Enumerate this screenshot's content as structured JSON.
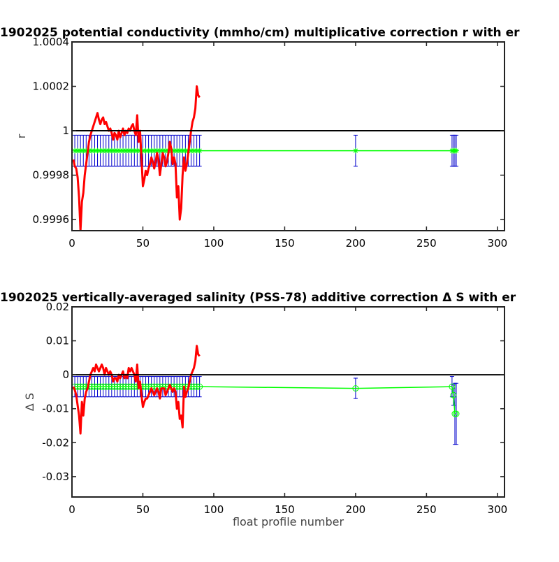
{
  "chart_data": [
    {
      "type": "line",
      "title": "1902025 potential conductivity (mmho/cm) multiplicative correction r with er",
      "xlabel": "",
      "ylabel": "r",
      "xlim": [
        0,
        305
      ],
      "ylim": [
        0.99955,
        1.0004
      ],
      "xticks": [
        0,
        50,
        100,
        150,
        200,
        250,
        300
      ],
      "xtick_labels": [
        "0",
        "50",
        "100",
        "150",
        "200",
        "250",
        "300"
      ],
      "yticks": [
        0.9996,
        0.9998,
        1.0,
        1.0002,
        1.0004
      ],
      "ytick_labels": [
        "0.9996",
        "0.9998",
        "1",
        "1.0002",
        "1.0004"
      ],
      "reference_line": 1.0,
      "series": [
        {
          "role": "correction",
          "color": "#ff0000",
          "x": [
            1,
            2,
            3,
            4,
            5,
            6,
            7,
            8,
            9,
            10,
            11,
            12,
            13,
            14,
            15,
            16,
            17,
            18,
            19,
            20,
            21,
            22,
            23,
            24,
            25,
            26,
            27,
            28,
            29,
            30,
            31,
            32,
            33,
            34,
            35,
            36,
            37,
            38,
            39,
            40,
            41,
            42,
            43,
            44,
            45,
            46,
            47,
            48,
            49,
            50,
            51,
            52,
            53,
            54,
            55,
            56,
            57,
            58,
            59,
            60,
            61,
            62,
            63,
            64,
            65,
            66,
            67,
            68,
            69,
            70,
            71,
            72,
            73,
            74,
            75,
            76,
            77,
            78,
            79,
            80,
            81,
            82,
            83,
            84,
            85,
            86,
            87,
            88,
            89,
            90
          ],
          "values": [
            0.99987,
            0.99984,
            0.99983,
            0.99979,
            0.9997,
            0.99955,
            0.99968,
            0.99972,
            0.9998,
            0.99985,
            0.9999,
            0.99995,
            0.99998,
            1.0,
            1.00002,
            1.00004,
            1.00006,
            1.00008,
            1.00005,
            1.00003,
            1.00005,
            1.00006,
            1.00003,
            1.00004,
            1.00002,
            1.0,
            1.00001,
            0.99999,
            0.99996,
            0.99999,
            0.99998,
            0.99996,
            1.0,
            0.99997,
            0.99999,
            1.00001,
            0.99998,
            1.0,
            0.99999,
            1.00001,
            1.0,
            1.00002,
            1.00003,
            1.0,
            0.99998,
            1.00007,
            0.99995,
            1.0,
            0.99988,
            0.99975,
            0.99978,
            0.99982,
            0.9998,
            0.99983,
            0.99985,
            0.99988,
            0.99986,
            0.99983,
            0.99986,
            0.9999,
            0.99987,
            0.9998,
            0.99985,
            0.9999,
            0.99988,
            0.99984,
            0.99986,
            0.9999,
            0.99995,
            0.99992,
            0.99985,
            0.99988,
            0.99985,
            0.9997,
            0.99975,
            0.9996,
            0.99965,
            0.9998,
            0.99988,
            0.99982,
            0.99985,
            0.9999,
            0.99995,
            1.0,
            1.00004,
            1.00006,
            1.0001,
            1.0002,
            1.00016,
            1.00015
          ]
        },
        {
          "role": "fit",
          "color": "#00ff00",
          "errorbar_color": "#0000cc",
          "marker": "*",
          "x": [
            2,
            4,
            6,
            8,
            10,
            12,
            14,
            16,
            18,
            20,
            22,
            24,
            26,
            28,
            30,
            32,
            34,
            36,
            38,
            40,
            42,
            44,
            46,
            48,
            50,
            52,
            54,
            56,
            58,
            60,
            62,
            64,
            66,
            68,
            70,
            72,
            74,
            76,
            78,
            80,
            82,
            84,
            86,
            88,
            90,
            200,
            268,
            269,
            270,
            271
          ],
          "values": [
            0.99991,
            0.99991,
            0.99991,
            0.99991,
            0.99991,
            0.99991,
            0.99991,
            0.99991,
            0.99991,
            0.99991,
            0.99991,
            0.99991,
            0.99991,
            0.99991,
            0.99991,
            0.99991,
            0.99991,
            0.99991,
            0.99991,
            0.99991,
            0.99991,
            0.99991,
            0.99991,
            0.99991,
            0.99991,
            0.99991,
            0.99991,
            0.99991,
            0.99991,
            0.99991,
            0.99991,
            0.99991,
            0.99991,
            0.99991,
            0.99991,
            0.99991,
            0.99991,
            0.99991,
            0.99991,
            0.99991,
            0.99991,
            0.99991,
            0.99991,
            0.99991,
            0.99991,
            0.99991,
            0.99991,
            0.99991,
            0.99991,
            0.99991
          ],
          "error": [
            7e-05,
            7e-05,
            7e-05,
            7e-05,
            7e-05,
            7e-05,
            7e-05,
            7e-05,
            7e-05,
            7e-05,
            7e-05,
            7e-05,
            7e-05,
            7e-05,
            7e-05,
            7e-05,
            7e-05,
            7e-05,
            7e-05,
            7e-05,
            7e-05,
            7e-05,
            7e-05,
            7e-05,
            7e-05,
            7e-05,
            7e-05,
            7e-05,
            7e-05,
            7e-05,
            7e-05,
            7e-05,
            7e-05,
            7e-05,
            7e-05,
            7e-05,
            7e-05,
            7e-05,
            7e-05,
            7e-05,
            7e-05,
            7e-05,
            7e-05,
            7e-05,
            7e-05,
            7e-05,
            7e-05,
            7e-05,
            7e-05,
            7e-05
          ]
        }
      ],
      "grid": false
    },
    {
      "type": "line",
      "title": "1902025 vertically-averaged salinity (PSS-78) additive correction Δ S with er",
      "xlabel": "float profile number",
      "ylabel": "Δ S",
      "xlim": [
        0,
        305
      ],
      "ylim": [
        -0.036,
        0.02
      ],
      "xticks": [
        0,
        50,
        100,
        150,
        200,
        250,
        300
      ],
      "xtick_labels": [
        "0",
        "50",
        "100",
        "150",
        "200",
        "250",
        "300"
      ],
      "yticks": [
        -0.03,
        -0.02,
        -0.01,
        0,
        0.01,
        0.02
      ],
      "ytick_labels": [
        "-0.03",
        "-0.02",
        "-0.01",
        "0",
        "0.01",
        "0.02"
      ],
      "reference_line": 0,
      "series": [
        {
          "role": "correction",
          "color": "#ff0000",
          "x": [
            1,
            2,
            3,
            4,
            5,
            6,
            7,
            8,
            9,
            10,
            11,
            12,
            13,
            14,
            15,
            16,
            17,
            18,
            19,
            20,
            21,
            22,
            23,
            24,
            25,
            26,
            27,
            28,
            29,
            30,
            31,
            32,
            33,
            34,
            35,
            36,
            37,
            38,
            39,
            40,
            41,
            42,
            43,
            44,
            45,
            46,
            47,
            48,
            49,
            50,
            51,
            52,
            53,
            54,
            55,
            56,
            57,
            58,
            59,
            60,
            61,
            62,
            63,
            64,
            65,
            66,
            67,
            68,
            69,
            70,
            71,
            72,
            73,
            74,
            75,
            76,
            77,
            78,
            79,
            80,
            81,
            82,
            83,
            84,
            85,
            86,
            87,
            88,
            89,
            90
          ],
          "values": [
            -0.0035,
            -0.0045,
            -0.006,
            -0.009,
            -0.012,
            -0.0173,
            -0.008,
            -0.012,
            -0.007,
            -0.005,
            -0.004,
            -0.002,
            0.0,
            0.001,
            0.002,
            0.001,
            0.003,
            0.002,
            0.001,
            0.002,
            0.003,
            0.002,
            0.0,
            0.002,
            0.001,
            0.0,
            0.001,
            0.0,
            -0.002,
            -0.001,
            -0.001,
            -0.002,
            0.0,
            -0.001,
            0.0,
            0.001,
            -0.001,
            0.0,
            -0.001,
            0.002,
            0.001,
            0.002,
            0.001,
            0.0,
            -0.002,
            0.003,
            -0.004,
            -0.002,
            -0.006,
            -0.0095,
            -0.008,
            -0.007,
            -0.007,
            -0.006,
            -0.005,
            -0.004,
            -0.005,
            -0.006,
            -0.005,
            -0.004,
            -0.005,
            -0.007,
            -0.004,
            -0.004,
            -0.004,
            -0.006,
            -0.005,
            -0.004,
            -0.003,
            -0.004,
            -0.005,
            -0.004,
            -0.005,
            -0.01,
            -0.008,
            -0.013,
            -0.012,
            -0.0155,
            -0.0035,
            -0.0065,
            -0.005,
            -0.004,
            -0.002,
            0.0,
            0.001,
            0.002,
            0.004,
            0.0085,
            0.006,
            0.0055
          ]
        },
        {
          "role": "fit",
          "color": "#00ff00",
          "errorbar_color": "#0000cc",
          "marker": "o",
          "x": [
            2,
            4,
            6,
            8,
            10,
            12,
            14,
            16,
            18,
            20,
            22,
            24,
            26,
            28,
            30,
            32,
            34,
            36,
            38,
            40,
            42,
            44,
            46,
            48,
            50,
            52,
            54,
            56,
            58,
            60,
            62,
            64,
            66,
            68,
            70,
            72,
            74,
            76,
            78,
            80,
            82,
            84,
            86,
            88,
            90,
            200,
            268,
            269,
            270,
            271
          ],
          "values": [
            -0.0035,
            -0.0035,
            -0.0035,
            -0.0035,
            -0.0035,
            -0.0035,
            -0.0035,
            -0.0035,
            -0.0035,
            -0.0035,
            -0.0035,
            -0.0035,
            -0.0035,
            -0.0035,
            -0.0035,
            -0.0035,
            -0.0035,
            -0.0035,
            -0.0035,
            -0.0035,
            -0.0035,
            -0.0035,
            -0.0035,
            -0.0035,
            -0.0035,
            -0.0035,
            -0.0035,
            -0.0035,
            -0.0035,
            -0.0035,
            -0.0035,
            -0.0035,
            -0.0035,
            -0.0035,
            -0.0035,
            -0.0035,
            -0.0035,
            -0.0035,
            -0.0035,
            -0.0035,
            -0.0035,
            -0.0035,
            -0.0035,
            -0.0035,
            -0.0035,
            -0.004,
            -0.0035,
            -0.006,
            -0.0115,
            -0.0115
          ],
          "error": [
            0.003,
            0.003,
            0.003,
            0.003,
            0.003,
            0.003,
            0.003,
            0.003,
            0.003,
            0.003,
            0.003,
            0.003,
            0.003,
            0.003,
            0.003,
            0.003,
            0.003,
            0.003,
            0.003,
            0.003,
            0.003,
            0.003,
            0.003,
            0.003,
            0.003,
            0.003,
            0.003,
            0.003,
            0.003,
            0.003,
            0.003,
            0.003,
            0.003,
            0.003,
            0.003,
            0.003,
            0.003,
            0.003,
            0.003,
            0.003,
            0.003,
            0.003,
            0.003,
            0.003,
            0.003,
            0.003,
            0.003,
            0.003,
            0.009,
            0.009
          ]
        }
      ],
      "grid": false
    }
  ]
}
